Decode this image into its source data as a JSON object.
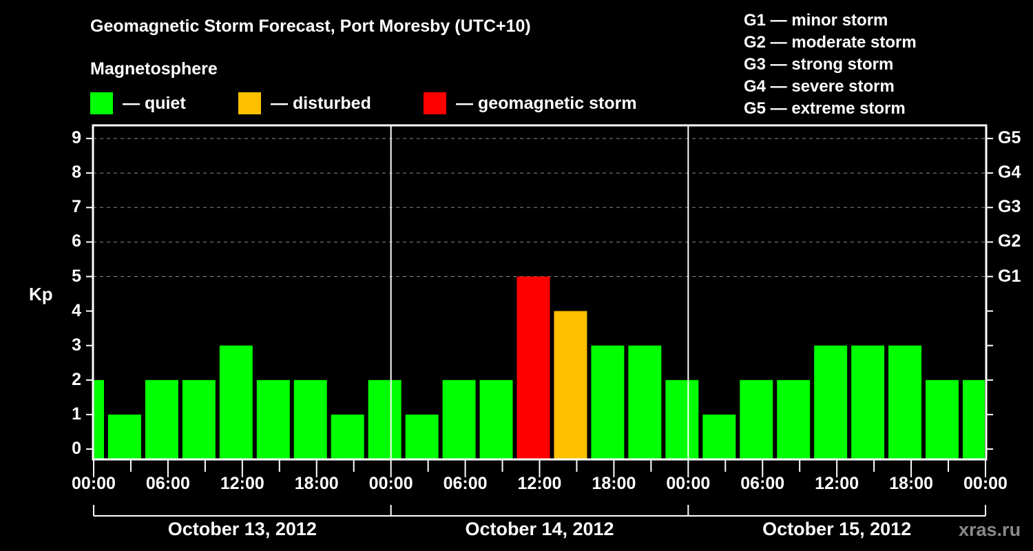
{
  "header": {
    "title": "Geomagnetic Storm Forecast, Port Moresby (UTC+10)",
    "subtitle": "Magnetosphere"
  },
  "legend": [
    {
      "label": "— quiet",
      "color": "#00ff00"
    },
    {
      "label": "— disturbed",
      "color": "#ffc000"
    },
    {
      "label": "— geomagnetic storm",
      "color": "#ff0000"
    }
  ],
  "storm_scale": [
    "G1 — minor storm",
    "G2 — moderate storm",
    "G3 — strong storm",
    "G4 — severe storm",
    "G5 — extreme storm"
  ],
  "axes": {
    "ylabel": "Kp",
    "yticks": [
      "0",
      "1",
      "2",
      "3",
      "4",
      "5",
      "6",
      "7",
      "8",
      "9"
    ],
    "right_ticks": [
      {
        "kp": 5,
        "label": "G1"
      },
      {
        "kp": 6,
        "label": "G2"
      },
      {
        "kp": 7,
        "label": "G3"
      },
      {
        "kp": 8,
        "label": "G4"
      },
      {
        "kp": 9,
        "label": "G5"
      }
    ],
    "xticks": [
      "00:00",
      "06:00",
      "12:00",
      "18:00",
      "00:00",
      "06:00",
      "12:00",
      "18:00",
      "00:00",
      "06:00",
      "12:00",
      "18:00",
      "00:00"
    ],
    "dates": [
      "October 13, 2012",
      "October 14, 2012",
      "October 15, 2012"
    ]
  },
  "watermark": "xras.ru",
  "colors": {
    "quiet": "#00ff00",
    "disturbed": "#ffc000",
    "storm": "#ff0000",
    "grid": "#8c8c8c",
    "axis": "#ffffff",
    "background": "#000000"
  },
  "chart_data": {
    "type": "bar",
    "title": "Geomagnetic Storm Forecast, Port Moresby (UTC+10)",
    "xlabel": "",
    "ylabel": "Kp",
    "ylim": [
      0,
      9
    ],
    "grid": "horizontal dashed at Kp 5-9",
    "legend_position": "top",
    "bin_hours": 3,
    "categories": [
      "Oct 13 00:00",
      "Oct 13 02:30",
      "Oct 13 05:30",
      "Oct 13 08:30",
      "Oct 13 11:30",
      "Oct 13 14:30",
      "Oct 13 17:30",
      "Oct 13 20:30",
      "Oct 13 23:30",
      "Oct 14 02:30",
      "Oct 14 05:30",
      "Oct 14 08:30",
      "Oct 14 11:30",
      "Oct 14 14:30",
      "Oct 14 17:30",
      "Oct 14 20:30",
      "Oct 14 23:30",
      "Oct 15 02:30",
      "Oct 15 05:30",
      "Oct 15 08:30",
      "Oct 15 11:30",
      "Oct 15 14:30",
      "Oct 15 17:30",
      "Oct 15 20:30",
      "Oct 15 23:30"
    ],
    "values": [
      2,
      1,
      2,
      2,
      3,
      2,
      2,
      1,
      2,
      1,
      2,
      2,
      5,
      4,
      3,
      3,
      2,
      1,
      2,
      2,
      3,
      3,
      3,
      2,
      2
    ],
    "status": [
      "quiet",
      "quiet",
      "quiet",
      "quiet",
      "quiet",
      "quiet",
      "quiet",
      "quiet",
      "quiet",
      "quiet",
      "quiet",
      "quiet",
      "storm",
      "disturbed",
      "quiet",
      "quiet",
      "quiet",
      "quiet",
      "quiet",
      "quiet",
      "quiet",
      "quiet",
      "quiet",
      "quiet",
      "quiet"
    ],
    "x_tick_labels": [
      "00:00",
      "06:00",
      "12:00",
      "18:00",
      "00:00",
      "06:00",
      "12:00",
      "18:00",
      "00:00",
      "06:00",
      "12:00",
      "18:00",
      "00:00"
    ],
    "date_labels": [
      "October 13, 2012",
      "October 14, 2012",
      "October 15, 2012"
    ],
    "right_axis_labels": {
      "5": "G1",
      "6": "G2",
      "7": "G3",
      "8": "G4",
      "9": "G5"
    }
  }
}
